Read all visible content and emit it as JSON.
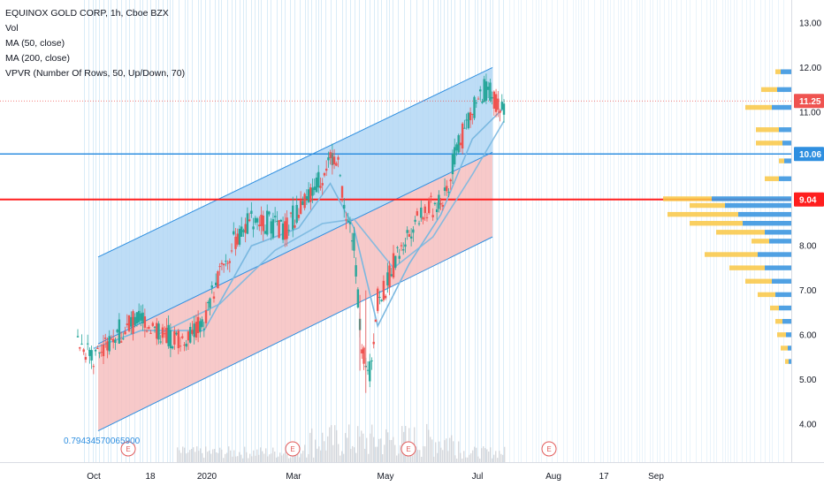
{
  "legend": {
    "symbol": "EQUINOX GOLD CORP, 1h, Cboe BZX",
    "vol": "Vol",
    "ma50": "MA (50, close)",
    "ma200": "MA (200, close)",
    "vpvr": "VPVR (Number Of Rows, 50, Up/Down, 70)"
  },
  "channel_label": "0.79434570065900",
  "earnings_marker": "E",
  "colors": {
    "up_band": "#b3d7f5",
    "down_band": "#f6c0c0",
    "band_line": "#2f8fe0",
    "red_line": "#ff1e1e",
    "blue_line": "#2f8fe0",
    "candle_up": "#26a69a",
    "candle_down": "#ef5350",
    "ma_line": "#7ab8e0",
    "vpvr_up": "#3d97e0",
    "vpvr_down": "#f9c744",
    "earnings": "#e25b5b"
  },
  "chart_data": {
    "type": "candlestick",
    "title": "EQUINOX GOLD CORP, 1h, Cboe BZX",
    "y_axis": {
      "min": 3.2,
      "max": 13.2,
      "ticks": [
        "13.00",
        "12.00",
        "11.00",
        "10.00",
        "9.00",
        "8.00",
        "7.00",
        "6.00",
        "5.00",
        "4.00"
      ],
      "tick_values": [
        13,
        12,
        11,
        10,
        9,
        8,
        7,
        6,
        5,
        4
      ]
    },
    "x_axis": {
      "ticks": [
        "Oct",
        "18",
        "2020",
        "Mar",
        "May",
        "Jul",
        "Aug",
        "17",
        "Sep"
      ]
    },
    "price_levels": [
      {
        "label": "11.25",
        "value": 11.25,
        "kind": "last"
      },
      {
        "label": "10.06",
        "value": 10.06,
        "kind": "horizontal"
      },
      {
        "label": "9.04",
        "value": 9.04,
        "kind": "horizontal"
      }
    ],
    "regression_channel": {
      "start": {
        "x": "Oct",
        "upper": 7.75,
        "mid": 5.8,
        "lower": 3.85
      },
      "end": {
        "x": "Jul",
        "upper": 12.0,
        "mid": 10.1,
        "lower": 8.2
      }
    },
    "price_path": [
      [
        0,
        5.9
      ],
      [
        4,
        5.5
      ],
      [
        8,
        5.8
      ],
      [
        12,
        6.2
      ],
      [
        16,
        6.4
      ],
      [
        20,
        6.1
      ],
      [
        24,
        5.9
      ],
      [
        28,
        6.0
      ],
      [
        32,
        6.3
      ],
      [
        36,
        7.4
      ],
      [
        40,
        8.1
      ],
      [
        44,
        8.6
      ],
      [
        48,
        8.5
      ],
      [
        52,
        8.3
      ],
      [
        56,
        8.8
      ],
      [
        60,
        9.3
      ],
      [
        64,
        10.0
      ],
      [
        66,
        9.8
      ],
      [
        68,
        8.6
      ],
      [
        70,
        8.1
      ],
      [
        72,
        5.6
      ],
      [
        74,
        5.2
      ],
      [
        76,
        6.8
      ],
      [
        78,
        7.1
      ],
      [
        80,
        7.6
      ],
      [
        82,
        7.9
      ],
      [
        84,
        8.3
      ],
      [
        86,
        8.7
      ],
      [
        88,
        8.8
      ],
      [
        90,
        8.9
      ],
      [
        92,
        9.0
      ],
      [
        94,
        9.4
      ],
      [
        96,
        10.2
      ],
      [
        98,
        10.6
      ],
      [
        100,
        11.0
      ],
      [
        102,
        11.4
      ],
      [
        104,
        11.5
      ],
      [
        106,
        11.2
      ],
      [
        108,
        11.1
      ]
    ],
    "moving_averages": [
      {
        "name": "MA (50, close)",
        "path": [
          [
            4,
            5.7
          ],
          [
            16,
            6.1
          ],
          [
            32,
            6.1
          ],
          [
            44,
            8.0
          ],
          [
            56,
            8.4
          ],
          [
            64,
            9.4
          ],
          [
            70,
            8.4
          ],
          [
            76,
            6.2
          ],
          [
            84,
            7.6
          ],
          [
            92,
            8.7
          ],
          [
            100,
            10.4
          ],
          [
            108,
            11.1
          ]
        ]
      },
      {
        "name": "MA (200, close)",
        "path": [
          [
            20,
            6.0
          ],
          [
            36,
            6.7
          ],
          [
            50,
            7.9
          ],
          [
            62,
            8.5
          ],
          [
            70,
            8.6
          ],
          [
            80,
            7.5
          ],
          [
            90,
            8.2
          ],
          [
            100,
            9.6
          ],
          [
            108,
            10.8
          ]
        ]
      }
    ],
    "vpvr_rows": [
      {
        "price": 11.9,
        "up": 12,
        "down": 6
      },
      {
        "price": 11.5,
        "up": 16,
        "down": 18
      },
      {
        "price": 11.1,
        "up": 22,
        "down": 30
      },
      {
        "price": 10.6,
        "up": 14,
        "down": 26
      },
      {
        "price": 10.3,
        "up": 10,
        "down": 30
      },
      {
        "price": 9.9,
        "up": 8,
        "down": 6
      },
      {
        "price": 9.5,
        "up": 14,
        "down": 16
      },
      {
        "price": 9.05,
        "up": 90,
        "down": 55
      },
      {
        "price": 8.9,
        "up": 75,
        "down": 40
      },
      {
        "price": 8.7,
        "up": 60,
        "down": 80
      },
      {
        "price": 8.5,
        "up": 55,
        "down": 60
      },
      {
        "price": 8.3,
        "up": 30,
        "down": 55
      },
      {
        "price": 8.1,
        "up": 25,
        "down": 20
      },
      {
        "price": 7.8,
        "up": 38,
        "down": 60
      },
      {
        "price": 7.5,
        "up": 30,
        "down": 40
      },
      {
        "price": 7.2,
        "up": 22,
        "down": 30
      },
      {
        "price": 6.9,
        "up": 18,
        "down": 20
      },
      {
        "price": 6.6,
        "up": 14,
        "down": 10
      },
      {
        "price": 6.3,
        "up": 10,
        "down": 8
      },
      {
        "price": 6.0,
        "up": 6,
        "down": 10
      },
      {
        "price": 5.7,
        "up": 4,
        "down": 8
      },
      {
        "price": 5.4,
        "up": 3,
        "down": 4
      }
    ]
  }
}
